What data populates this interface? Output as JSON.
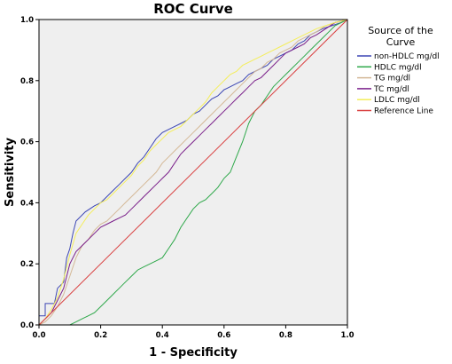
{
  "chart_data": {
    "type": "line",
    "title": "ROC Curve",
    "xlabel": "1 - Specificity",
    "ylabel": "Sensitivity",
    "xlim": [
      0,
      1
    ],
    "ylim": [
      0,
      1
    ],
    "xticks": [
      "0.0",
      "0.2",
      "0.4",
      "0.6",
      "0.8",
      "1.0"
    ],
    "yticks": [
      "0.0",
      "0.2",
      "0.4",
      "0.6",
      "0.8",
      "1.0"
    ],
    "grid": false,
    "legend": {
      "title_lines": [
        "Source of the",
        "Curve"
      ],
      "position": "right"
    },
    "series": [
      {
        "name": "non-HDLC mg/dl",
        "color": "#3c46b4",
        "points": [
          [
            0,
            0
          ],
          [
            0,
            0.03
          ],
          [
            0.02,
            0.03
          ],
          [
            0.02,
            0.07
          ],
          [
            0.05,
            0.07
          ],
          [
            0.06,
            0.12
          ],
          [
            0.08,
            0.14
          ],
          [
            0.09,
            0.22
          ],
          [
            0.1,
            0.25
          ],
          [
            0.11,
            0.3
          ],
          [
            0.12,
            0.34
          ],
          [
            0.15,
            0.37
          ],
          [
            0.18,
            0.39
          ],
          [
            0.2,
            0.4
          ],
          [
            0.22,
            0.42
          ],
          [
            0.24,
            0.44
          ],
          [
            0.26,
            0.46
          ],
          [
            0.28,
            0.48
          ],
          [
            0.3,
            0.5
          ],
          [
            0.32,
            0.53
          ],
          [
            0.34,
            0.55
          ],
          [
            0.36,
            0.58
          ],
          [
            0.38,
            0.61
          ],
          [
            0.4,
            0.63
          ],
          [
            0.42,
            0.64
          ],
          [
            0.44,
            0.65
          ],
          [
            0.46,
            0.66
          ],
          [
            0.48,
            0.67
          ],
          [
            0.5,
            0.69
          ],
          [
            0.52,
            0.7
          ],
          [
            0.54,
            0.72
          ],
          [
            0.56,
            0.74
          ],
          [
            0.58,
            0.75
          ],
          [
            0.6,
            0.77
          ],
          [
            0.62,
            0.78
          ],
          [
            0.64,
            0.79
          ],
          [
            0.66,
            0.8
          ],
          [
            0.68,
            0.82
          ],
          [
            0.7,
            0.83
          ],
          [
            0.72,
            0.84
          ],
          [
            0.74,
            0.85
          ],
          [
            0.76,
            0.87
          ],
          [
            0.78,
            0.88
          ],
          [
            0.8,
            0.89
          ],
          [
            0.82,
            0.9
          ],
          [
            0.84,
            0.92
          ],
          [
            0.86,
            0.93
          ],
          [
            0.88,
            0.95
          ],
          [
            0.9,
            0.96
          ],
          [
            0.92,
            0.97
          ],
          [
            0.95,
            0.98
          ],
          [
            0.98,
            0.99
          ],
          [
            1,
            1
          ]
        ]
      },
      {
        "name": "HDLC mg/dl",
        "color": "#2ea84a",
        "points": [
          [
            0,
            0
          ],
          [
            0.1,
            0
          ],
          [
            0.12,
            0.01
          ],
          [
            0.14,
            0.02
          ],
          [
            0.16,
            0.03
          ],
          [
            0.18,
            0.04
          ],
          [
            0.2,
            0.06
          ],
          [
            0.22,
            0.08
          ],
          [
            0.24,
            0.1
          ],
          [
            0.26,
            0.12
          ],
          [
            0.28,
            0.14
          ],
          [
            0.3,
            0.16
          ],
          [
            0.32,
            0.18
          ],
          [
            0.34,
            0.19
          ],
          [
            0.36,
            0.2
          ],
          [
            0.38,
            0.21
          ],
          [
            0.4,
            0.22
          ],
          [
            0.42,
            0.25
          ],
          [
            0.44,
            0.28
          ],
          [
            0.46,
            0.32
          ],
          [
            0.48,
            0.35
          ],
          [
            0.5,
            0.38
          ],
          [
            0.52,
            0.4
          ],
          [
            0.54,
            0.41
          ],
          [
            0.56,
            0.43
          ],
          [
            0.58,
            0.45
          ],
          [
            0.6,
            0.48
          ],
          [
            0.62,
            0.5
          ],
          [
            0.64,
            0.55
          ],
          [
            0.66,
            0.6
          ],
          [
            0.68,
            0.66
          ],
          [
            0.7,
            0.7
          ],
          [
            0.72,
            0.72
          ],
          [
            0.74,
            0.75
          ],
          [
            0.76,
            0.78
          ],
          [
            0.78,
            0.8
          ],
          [
            0.8,
            0.82
          ],
          [
            0.82,
            0.84
          ],
          [
            0.84,
            0.86
          ],
          [
            0.86,
            0.88
          ],
          [
            0.88,
            0.9
          ],
          [
            0.9,
            0.92
          ],
          [
            0.92,
            0.94
          ],
          [
            0.94,
            0.96
          ],
          [
            0.96,
            0.98
          ],
          [
            1,
            1
          ]
        ]
      },
      {
        "name": "TG mg/dl",
        "color": "#d4b896",
        "points": [
          [
            0,
            0
          ],
          [
            0.02,
            0.01
          ],
          [
            0.04,
            0.03
          ],
          [
            0.06,
            0.06
          ],
          [
            0.08,
            0.1
          ],
          [
            0.1,
            0.16
          ],
          [
            0.12,
            0.22
          ],
          [
            0.14,
            0.26
          ],
          [
            0.16,
            0.28
          ],
          [
            0.18,
            0.31
          ],
          [
            0.2,
            0.33
          ],
          [
            0.22,
            0.34
          ],
          [
            0.24,
            0.36
          ],
          [
            0.26,
            0.38
          ],
          [
            0.28,
            0.4
          ],
          [
            0.3,
            0.42
          ],
          [
            0.32,
            0.44
          ],
          [
            0.34,
            0.46
          ],
          [
            0.36,
            0.48
          ],
          [
            0.38,
            0.5
          ],
          [
            0.4,
            0.53
          ],
          [
            0.42,
            0.55
          ],
          [
            0.44,
            0.57
          ],
          [
            0.46,
            0.59
          ],
          [
            0.48,
            0.61
          ],
          [
            0.5,
            0.63
          ],
          [
            0.52,
            0.65
          ],
          [
            0.54,
            0.67
          ],
          [
            0.56,
            0.69
          ],
          [
            0.58,
            0.71
          ],
          [
            0.6,
            0.73
          ],
          [
            0.62,
            0.75
          ],
          [
            0.64,
            0.77
          ],
          [
            0.66,
            0.79
          ],
          [
            0.68,
            0.81
          ],
          [
            0.7,
            0.83
          ],
          [
            0.72,
            0.84
          ],
          [
            0.74,
            0.86
          ],
          [
            0.76,
            0.87
          ],
          [
            0.78,
            0.89
          ],
          [
            0.8,
            0.9
          ],
          [
            0.82,
            0.91
          ],
          [
            0.84,
            0.93
          ],
          [
            0.86,
            0.94
          ],
          [
            0.88,
            0.95
          ],
          [
            0.9,
            0.96
          ],
          [
            0.93,
            0.98
          ],
          [
            0.96,
            0.99
          ],
          [
            1,
            1
          ]
        ]
      },
      {
        "name": "TC mg/dl",
        "color": "#7a1f8a",
        "points": [
          [
            0,
            0
          ],
          [
            0.02,
            0.02
          ],
          [
            0.04,
            0.04
          ],
          [
            0.06,
            0.08
          ],
          [
            0.08,
            0.12
          ],
          [
            0.1,
            0.2
          ],
          [
            0.12,
            0.24
          ],
          [
            0.14,
            0.26
          ],
          [
            0.16,
            0.28
          ],
          [
            0.18,
            0.3
          ],
          [
            0.2,
            0.32
          ],
          [
            0.22,
            0.33
          ],
          [
            0.24,
            0.34
          ],
          [
            0.26,
            0.35
          ],
          [
            0.28,
            0.36
          ],
          [
            0.3,
            0.38
          ],
          [
            0.32,
            0.4
          ],
          [
            0.34,
            0.42
          ],
          [
            0.36,
            0.44
          ],
          [
            0.38,
            0.46
          ],
          [
            0.4,
            0.48
          ],
          [
            0.42,
            0.5
          ],
          [
            0.44,
            0.53
          ],
          [
            0.46,
            0.56
          ],
          [
            0.48,
            0.58
          ],
          [
            0.5,
            0.6
          ],
          [
            0.52,
            0.62
          ],
          [
            0.54,
            0.64
          ],
          [
            0.56,
            0.66
          ],
          [
            0.58,
            0.68
          ],
          [
            0.6,
            0.7
          ],
          [
            0.62,
            0.72
          ],
          [
            0.64,
            0.74
          ],
          [
            0.66,
            0.76
          ],
          [
            0.68,
            0.78
          ],
          [
            0.7,
            0.8
          ],
          [
            0.72,
            0.81
          ],
          [
            0.74,
            0.83
          ],
          [
            0.76,
            0.85
          ],
          [
            0.78,
            0.87
          ],
          [
            0.8,
            0.89
          ],
          [
            0.82,
            0.9
          ],
          [
            0.84,
            0.91
          ],
          [
            0.86,
            0.92
          ],
          [
            0.88,
            0.94
          ],
          [
            0.9,
            0.95
          ],
          [
            0.93,
            0.97
          ],
          [
            0.96,
            0.99
          ],
          [
            1,
            1
          ]
        ]
      },
      {
        "name": "LDLC mg/dl",
        "color": "#f4ee5a",
        "points": [
          [
            0,
            0
          ],
          [
            0.02,
            0.02
          ],
          [
            0.04,
            0.05
          ],
          [
            0.06,
            0.09
          ],
          [
            0.08,
            0.15
          ],
          [
            0.1,
            0.23
          ],
          [
            0.12,
            0.3
          ],
          [
            0.14,
            0.33
          ],
          [
            0.16,
            0.36
          ],
          [
            0.18,
            0.38
          ],
          [
            0.2,
            0.4
          ],
          [
            0.22,
            0.41
          ],
          [
            0.24,
            0.43
          ],
          [
            0.26,
            0.45
          ],
          [
            0.28,
            0.47
          ],
          [
            0.3,
            0.49
          ],
          [
            0.32,
            0.52
          ],
          [
            0.34,
            0.54
          ],
          [
            0.36,
            0.57
          ],
          [
            0.38,
            0.59
          ],
          [
            0.4,
            0.61
          ],
          [
            0.42,
            0.63
          ],
          [
            0.44,
            0.64
          ],
          [
            0.46,
            0.65
          ],
          [
            0.48,
            0.67
          ],
          [
            0.5,
            0.69
          ],
          [
            0.52,
            0.71
          ],
          [
            0.54,
            0.73
          ],
          [
            0.56,
            0.76
          ],
          [
            0.58,
            0.78
          ],
          [
            0.6,
            0.8
          ],
          [
            0.62,
            0.82
          ],
          [
            0.64,
            0.83
          ],
          [
            0.66,
            0.85
          ],
          [
            0.68,
            0.86
          ],
          [
            0.7,
            0.87
          ],
          [
            0.72,
            0.88
          ],
          [
            0.74,
            0.89
          ],
          [
            0.76,
            0.9
          ],
          [
            0.78,
            0.91
          ],
          [
            0.8,
            0.92
          ],
          [
            0.82,
            0.93
          ],
          [
            0.84,
            0.94
          ],
          [
            0.86,
            0.95
          ],
          [
            0.88,
            0.96
          ],
          [
            0.9,
            0.97
          ],
          [
            0.93,
            0.98
          ],
          [
            0.96,
            0.99
          ],
          [
            1,
            1
          ]
        ]
      },
      {
        "name": "Reference Line",
        "color": "#d94040",
        "points": [
          [
            0,
            0
          ],
          [
            1,
            1
          ]
        ]
      }
    ]
  },
  "colors": {
    "plot_background": "#efefef",
    "page_background": "#ffffff",
    "axis": "#000000"
  }
}
